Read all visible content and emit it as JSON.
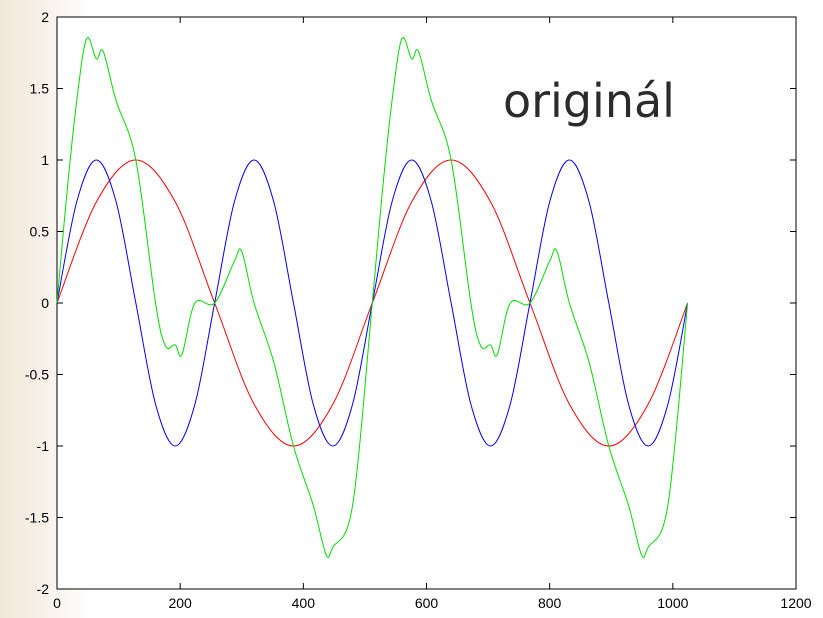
{
  "chart_data": {
    "type": "line",
    "xlim": [
      0,
      1200
    ],
    "ylim": [
      -2,
      2
    ],
    "x_ticks": [
      "0",
      "200",
      "400",
      "600",
      "800",
      "1000",
      "1200"
    ],
    "y_ticks": [
      "2",
      "1.5",
      "1",
      "0.5",
      "0",
      "-0.5",
      "-1",
      "-1.5",
      "-2"
    ],
    "x_tick_values": [
      0,
      200,
      400,
      600,
      800,
      1000,
      1200
    ],
    "y_tick_values": [
      2,
      1.5,
      1,
      0.5,
      0,
      -0.5,
      -1,
      -1.5,
      -2
    ],
    "annotation": "originál",
    "grid": false,
    "series": [
      {
        "color": "#ff0000",
        "x": [
          0,
          64,
          128,
          192,
          256,
          320,
          384,
          448,
          512,
          576,
          640,
          704,
          768,
          832,
          896,
          960,
          1024
        ],
        "y": [
          0,
          0.707,
          1.0,
          0.707,
          0,
          -0.707,
          -1.0,
          -0.707,
          0,
          0.707,
          1.0,
          0.707,
          0,
          -0.707,
          -1.0,
          -0.707,
          0
        ]
      },
      {
        "color": "#0000ff",
        "x": [
          0,
          32,
          64,
          96,
          128,
          160,
          192,
          224,
          256,
          288,
          320,
          352,
          384,
          416,
          448,
          480,
          512,
          544,
          576,
          608,
          640,
          672,
          704,
          736,
          768,
          800,
          832,
          864,
          896,
          928,
          960,
          992,
          1024
        ],
        "y": [
          0,
          0.707,
          1.0,
          0.707,
          0,
          -0.707,
          -1.0,
          -0.707,
          0,
          0.707,
          1.0,
          0.707,
          0,
          -0.707,
          -1.0,
          -0.707,
          0,
          0.707,
          1.0,
          0.707,
          0,
          -0.707,
          -1.0,
          -0.707,
          0,
          0.707,
          1.0,
          0.707,
          0,
          -0.707,
          -1.0,
          -0.707,
          0
        ]
      },
      {
        "color": "#00dd00",
        "x": [
          0,
          16,
          32,
          48,
          64,
          75,
          96,
          128,
          160,
          176,
          192,
          203,
          224,
          256,
          288,
          300,
          320,
          352,
          384,
          416,
          437,
          448,
          480,
          512,
          528,
          544,
          560,
          576,
          587,
          608,
          640,
          672,
          688,
          704,
          715,
          736,
          768,
          800,
          812,
          832,
          864,
          896,
          928,
          949,
          960,
          992,
          1024
        ],
        "y": [
          0,
          0.765,
          1.414,
          1.848,
          1.707,
          1.76,
          1.414,
          1.0,
          0.0,
          -0.3,
          -0.293,
          -0.36,
          0.0,
          0.0,
          0.293,
          0.36,
          0.0,
          -0.414,
          -1.0,
          -1.414,
          -1.76,
          -1.707,
          -1.414,
          0.0,
          0.765,
          1.414,
          1.848,
          1.707,
          1.76,
          1.414,
          1.0,
          0.0,
          -0.3,
          -0.293,
          -0.36,
          0.0,
          0.0,
          0.293,
          0.36,
          0.0,
          -0.414,
          -1.0,
          -1.414,
          -1.76,
          -1.707,
          -1.414,
          0.0
        ]
      }
    ]
  }
}
